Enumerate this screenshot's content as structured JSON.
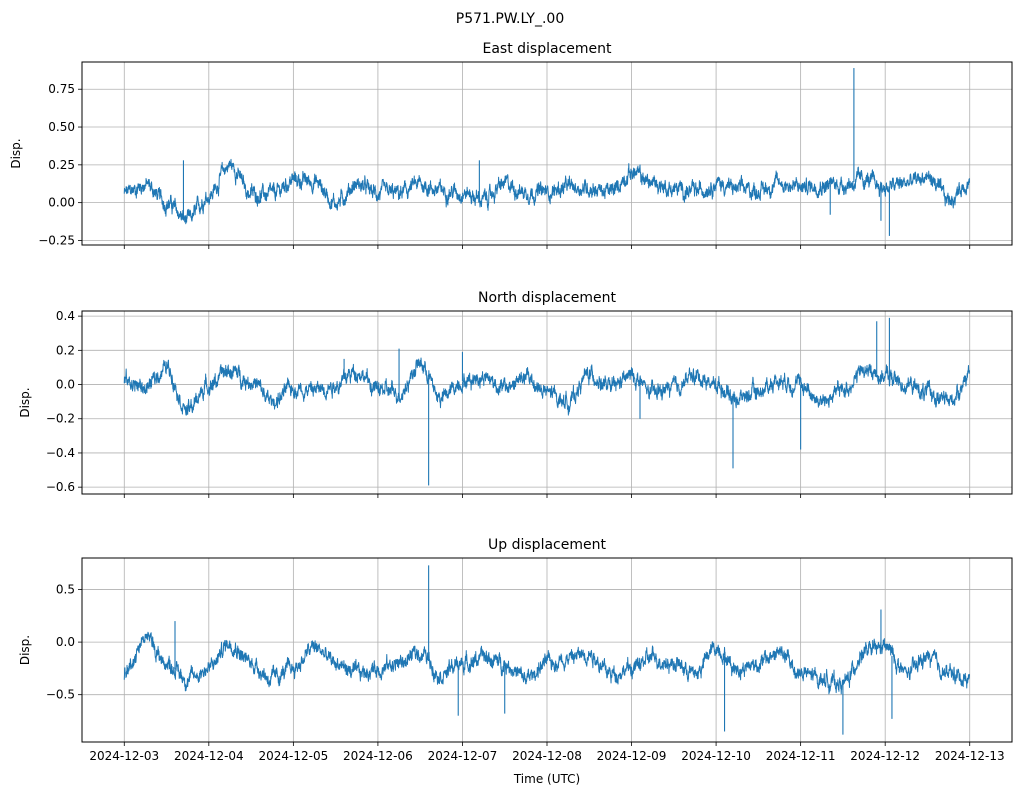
{
  "chart_data": [
    {
      "type": "line",
      "suptitle": "P571.PW.LY_.00",
      "title": "East displacement",
      "xlabel": "",
      "ylabel": "Disp.",
      "ylim": [
        -0.28,
        0.93
      ],
      "yticks": [
        -0.25,
        0.0,
        0.25,
        0.5,
        0.75
      ],
      "ytick_labels": [
        "−0.25",
        "0.00",
        "0.25",
        "0.50",
        "0.75"
      ],
      "grid": true,
      "color": "#1f77b4",
      "x_days": [
        0,
        0.25,
        0.5,
        0.75,
        1,
        1.25,
        1.5,
        1.75,
        2,
        2.25,
        2.5,
        2.75,
        3,
        3.25,
        3.5,
        3.75,
        4,
        4.25,
        4.5,
        4.75,
        5,
        5.25,
        5.5,
        5.75,
        6,
        6.25,
        6.5,
        6.75,
        7,
        7.25,
        7.5,
        7.75,
        8,
        8.25,
        8.5,
        8.75,
        9,
        9.25,
        9.5,
        9.75,
        10
      ],
      "values": [
        0.06,
        0.12,
        0.0,
        -0.12,
        0.05,
        0.25,
        0.06,
        0.05,
        0.15,
        0.14,
        0.0,
        0.12,
        0.06,
        0.06,
        0.12,
        0.08,
        0.07,
        0.02,
        0.12,
        0.07,
        0.07,
        0.1,
        0.1,
        0.07,
        0.2,
        0.13,
        0.09,
        0.07,
        0.13,
        0.09,
        0.08,
        0.13,
        0.1,
        0.12,
        0.12,
        0.15,
        0.1,
        0.13,
        0.17,
        0.02,
        0.14
      ],
      "spikes": [
        [
          8.63,
          0.89
        ],
        [
          8.35,
          -0.08
        ],
        [
          9.05,
          -0.22
        ],
        [
          8.95,
          -0.12
        ],
        [
          0.7,
          0.28
        ],
        [
          4.2,
          0.28
        ]
      ]
    },
    {
      "type": "line",
      "title": "North displacement",
      "xlabel": "",
      "ylabel": "Disp.",
      "ylim": [
        -0.64,
        0.43
      ],
      "yticks": [
        -0.6,
        -0.4,
        -0.2,
        0.0,
        0.2,
        0.4
      ],
      "ytick_labels": [
        "−0.6",
        "−0.4",
        "−0.2",
        "0.0",
        "0.2",
        "0.4"
      ],
      "grid": true,
      "color": "#1f77b4",
      "x_days": [
        0,
        0.25,
        0.5,
        0.75,
        1,
        1.25,
        1.5,
        1.75,
        2,
        2.25,
        2.5,
        2.75,
        3,
        3.25,
        3.5,
        3.75,
        4,
        4.25,
        4.5,
        4.75,
        5,
        5.25,
        5.5,
        5.75,
        6,
        6.25,
        6.5,
        6.75,
        7,
        7.25,
        7.5,
        7.75,
        8,
        8.25,
        8.5,
        8.75,
        9,
        9.25,
        9.5,
        9.75,
        10
      ],
      "values": [
        0.02,
        -0.02,
        0.1,
        -0.15,
        0.0,
        0.08,
        0.02,
        -0.1,
        -0.02,
        -0.03,
        0.0,
        0.08,
        -0.03,
        -0.05,
        0.12,
        -0.08,
        0.02,
        0.05,
        -0.02,
        0.04,
        -0.05,
        -0.1,
        0.06,
        -0.02,
        0.05,
        -0.05,
        -0.02,
        0.05,
        0.0,
        -0.08,
        -0.04,
        0.03,
        0.0,
        -0.1,
        -0.03,
        0.08,
        0.05,
        0.0,
        -0.05,
        -0.1,
        0.05
      ],
      "spikes": [
        [
          3.6,
          -0.59
        ],
        [
          7.2,
          -0.49
        ],
        [
          8.0,
          -0.38
        ],
        [
          8.9,
          0.37
        ],
        [
          9.05,
          0.39
        ],
        [
          6.1,
          -0.2
        ],
        [
          3.25,
          0.21
        ],
        [
          4.0,
          0.19
        ],
        [
          2.6,
          0.15
        ]
      ]
    },
    {
      "type": "line",
      "title": "Up displacement",
      "xlabel": "Time (UTC)",
      "ylabel": "Disp.",
      "ylim": [
        -0.95,
        0.8
      ],
      "yticks": [
        -0.5,
        0.0,
        0.5
      ],
      "ytick_labels": [
        "−0.5",
        "0.0",
        "0.5"
      ],
      "grid": true,
      "color": "#1f77b4",
      "x_days": [
        0,
        0.25,
        0.5,
        0.75,
        1,
        1.25,
        1.5,
        1.75,
        2,
        2.25,
        2.5,
        2.75,
        3,
        3.25,
        3.5,
        3.75,
        4,
        4.25,
        4.5,
        4.75,
        5,
        5.25,
        5.5,
        5.75,
        6,
        6.25,
        6.5,
        6.75,
        7,
        7.25,
        7.5,
        7.75,
        8,
        8.25,
        8.5,
        8.75,
        9,
        9.25,
        9.5,
        9.75,
        10
      ],
      "values": [
        -0.3,
        0.05,
        -0.2,
        -0.35,
        -0.25,
        0.0,
        -0.2,
        -0.35,
        -0.25,
        -0.05,
        -0.2,
        -0.3,
        -0.25,
        -0.2,
        -0.1,
        -0.3,
        -0.2,
        -0.15,
        -0.2,
        -0.35,
        -0.2,
        -0.15,
        -0.1,
        -0.3,
        -0.25,
        -0.15,
        -0.2,
        -0.3,
        -0.05,
        -0.25,
        -0.2,
        -0.1,
        -0.3,
        -0.35,
        -0.4,
        -0.1,
        -0.05,
        -0.3,
        -0.15,
        -0.3,
        -0.35
      ],
      "spikes": [
        [
          3.6,
          0.73
        ],
        [
          3.95,
          -0.7
        ],
        [
          7.1,
          -0.85
        ],
        [
          8.5,
          -0.88
        ],
        [
          8.95,
          0.31
        ],
        [
          9.08,
          -0.73
        ],
        [
          4.5,
          -0.68
        ],
        [
          0.6,
          0.2
        ]
      ]
    }
  ],
  "x_axis": {
    "tick_labels": [
      "2024-12-03",
      "2024-12-04",
      "2024-12-05",
      "2024-12-06",
      "2024-12-07",
      "2024-12-08",
      "2024-12-09",
      "2024-12-10",
      "2024-12-11",
      "2024-12-12",
      "2024-12-13"
    ],
    "xlim_days": [
      -0.5,
      10.5
    ],
    "label": "Time (UTC)"
  }
}
